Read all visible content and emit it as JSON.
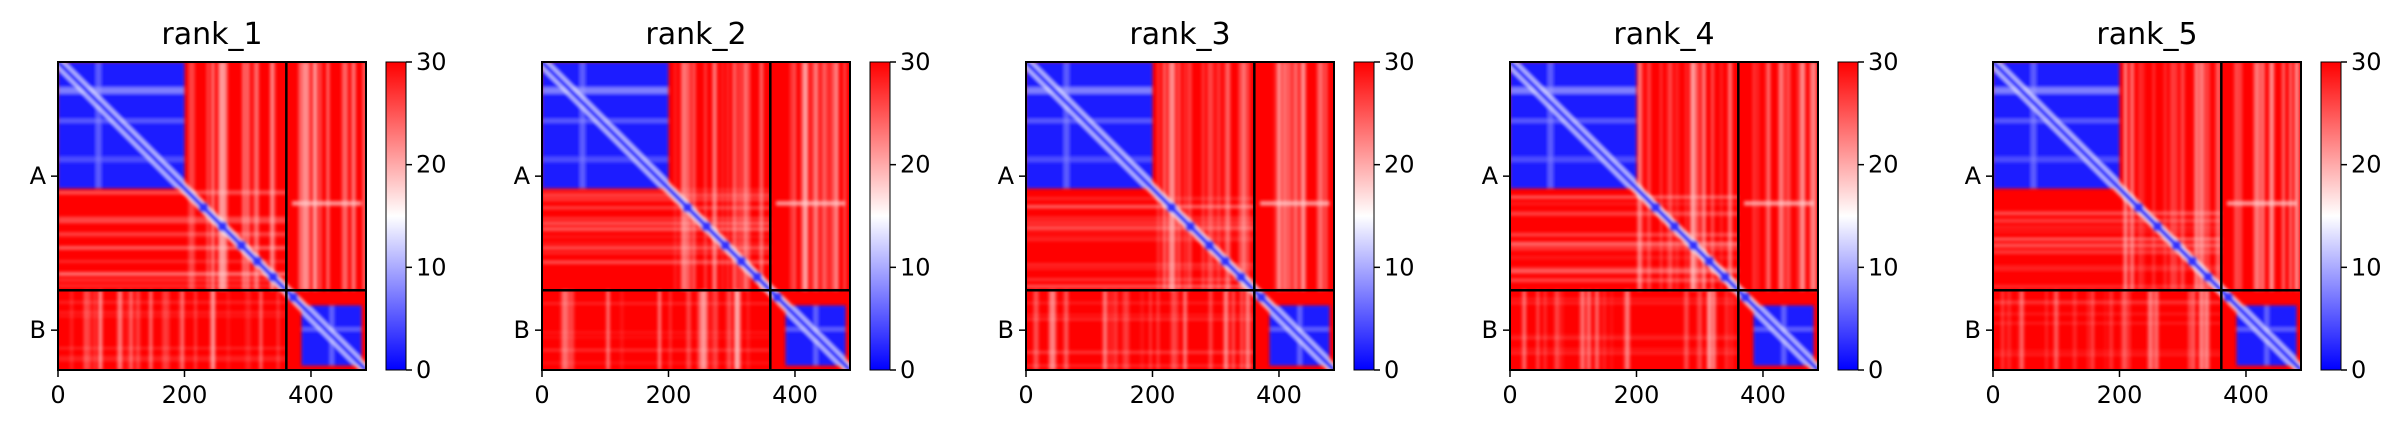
{
  "chart_data": {
    "type": "heatmap",
    "colormap": {
      "low": "#0000ff",
      "mid": "#ffffff",
      "high": "#ff0000"
    },
    "value_range": [
      0,
      30
    ],
    "chain_boundary": 361,
    "total_residues": 487,
    "x_range": [
      0,
      487
    ],
    "x_ticks": [
      "0",
      "200",
      "400"
    ],
    "chain_labels": [
      "A",
      "B"
    ],
    "colorbar_ticks": [
      "0",
      "10",
      "20",
      "30"
    ],
    "panels": [
      {
        "title": "rank_1"
      },
      {
        "title": "rank_2"
      },
      {
        "title": "rank_3"
      },
      {
        "title": "rank_4"
      },
      {
        "title": "rank_5"
      }
    ]
  }
}
